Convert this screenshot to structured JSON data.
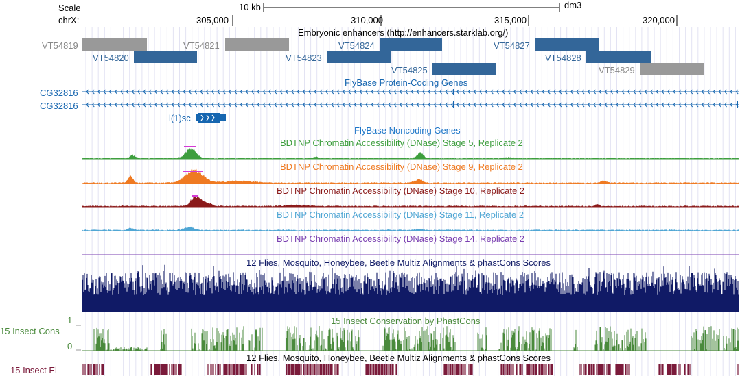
{
  "ruler": {
    "scale_label": "Scale",
    "scale_value": "10 kb",
    "assembly": "dm3",
    "chrom_label": "chrX:",
    "ticks": [
      "305,000",
      "310,000",
      "315,000",
      "320,000"
    ]
  },
  "enhancers": {
    "title": "Embryonic enhancers (http://enhancers.starklab.org/)",
    "items": [
      {
        "name": "VT54819",
        "color": "#999999"
      },
      {
        "name": "VT54820",
        "color": "#336699"
      },
      {
        "name": "VT54821",
        "color": "#999999"
      },
      {
        "name": "VT54823",
        "color": "#336699"
      },
      {
        "name": "VT54824",
        "color": "#336699"
      },
      {
        "name": "VT54825",
        "color": "#336699"
      },
      {
        "name": "VT54827",
        "color": "#336699"
      },
      {
        "name": "VT54828",
        "color": "#336699"
      },
      {
        "name": "VT54829",
        "color": "#999999"
      }
    ]
  },
  "genes": {
    "title": "FlyBase Protein-Coding Genes",
    "transcripts": [
      "CG32816",
      "CG32816",
      "l(1)sc"
    ],
    "gene_color": "#1666b0"
  },
  "noncoding": {
    "title": "FlyBase Noncoding Genes"
  },
  "dnase": {
    "tracks": [
      {
        "title": "BDTNP Chromatin Accessibility (DNase) Stage 5, Replicate 2",
        "color": "#3d9e3d"
      },
      {
        "title": "BDTNP Chromatin Accessibility (DNase) Stage 9, Replicate 2",
        "color": "#ef7a22"
      },
      {
        "title": "BDTNP Chromatin Accessibility (DNase) Stage 10, Replicate 2",
        "color": "#8b1a1a"
      },
      {
        "title": "BDTNP Chromatin Accessibility (DNase) Stage 11, Replicate 2",
        "color": "#4fa6d4"
      },
      {
        "title": "BDTNP Chromatin Accessibility (DNase) Stage 14, Replicate 2",
        "color": "#7a3fb0"
      }
    ]
  },
  "multiz": {
    "title": "12 Flies, Mosquito, Honeybee, Beetle Multiz Alignments & phastCons Scores",
    "color": "#101a66"
  },
  "phastcons": {
    "title": "15 Insect Conservation by PhastCons",
    "left_label": "15 Insect Cons",
    "y_max": "1",
    "y_min": "0",
    "color": "#4a8a3c"
  },
  "elements": {
    "title": "12 Flies, Mosquito, Honeybee, Beetle Multiz Alignments & phastCons Scores",
    "left_label": "15 Insect El",
    "color": "#7a1a3a"
  }
}
